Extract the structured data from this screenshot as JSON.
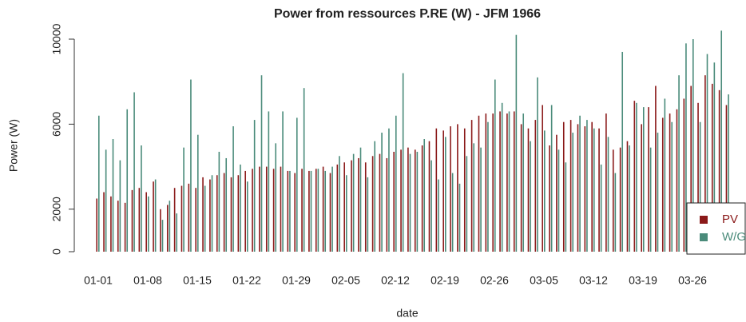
{
  "chart_data": {
    "type": "bar",
    "title": "Power from ressources P.RE (W) - JFM 1966",
    "x_label": "date",
    "y_label": "Power (W)",
    "categories": [
      "01-01",
      null,
      null,
      null,
      null,
      null,
      null,
      "01-08",
      null,
      null,
      null,
      null,
      null,
      null,
      "01-15",
      null,
      null,
      null,
      null,
      null,
      null,
      "01-22",
      null,
      null,
      null,
      null,
      null,
      null,
      "01-29",
      null,
      null,
      null,
      null,
      null,
      null,
      "02-05",
      null,
      null,
      null,
      null,
      null,
      null,
      "02-12",
      null,
      null,
      null,
      null,
      null,
      null,
      "02-19",
      null,
      null,
      null,
      null,
      null,
      null,
      "02-26",
      null,
      null,
      null,
      null,
      null,
      null,
      "03-05",
      null,
      null,
      null,
      null,
      null,
      null,
      "03-12",
      null,
      null,
      null,
      null,
      null,
      null,
      "03-19",
      null,
      null,
      null,
      null,
      null,
      null,
      "03-26",
      null,
      null,
      null,
      null,
      null
    ],
    "series": [
      {
        "name": "PV",
        "color": "#8b1a1a",
        "values": [
          2500,
          2800,
          2600,
          2400,
          2300,
          2900,
          3000,
          2800,
          3300,
          2000,
          2200,
          3000,
          3100,
          3200,
          3000,
          3500,
          3400,
          3600,
          3700,
          3500,
          3600,
          3800,
          3900,
          4000,
          4000,
          3900,
          4000,
          3800,
          3700,
          3900,
          3800,
          3900,
          4000,
          3700,
          4100,
          4200,
          4300,
          4400,
          4200,
          4500,
          4600,
          4400,
          4700,
          4800,
          4900,
          4800,
          5000,
          5200,
          5800,
          5700,
          5900,
          6000,
          5800,
          6200,
          6400,
          6500,
          6500,
          6600,
          6500,
          6600,
          6000,
          5800,
          6200,
          6900,
          5000,
          5500,
          6100,
          6200,
          6000,
          5900,
          6100,
          5800,
          6500,
          4800,
          4900,
          5200,
          7100,
          6000,
          6800,
          7800,
          6300,
          6500,
          6700,
          7200,
          7800,
          7000,
          8300,
          7900,
          7600,
          6900
        ]
      },
      {
        "name": "W/G",
        "color": "#4a8b7a",
        "values": [
          6400,
          4800,
          5300,
          4300,
          6700,
          7500,
          5000,
          2600,
          3400,
          1500,
          2400,
          1800,
          4900,
          8100,
          5500,
          3100,
          3600,
          4700,
          4400,
          5900,
          4100,
          3300,
          6200,
          8300,
          6600,
          5100,
          6600,
          3800,
          6300,
          7700,
          3800,
          3900,
          3800,
          4000,
          4500,
          3600,
          4600,
          4900,
          3500,
          5200,
          5600,
          5800,
          6400,
          8400,
          4600,
          4700,
          5300,
          4300,
          3400,
          5400,
          3700,
          3200,
          4500,
          5100,
          4900,
          6100,
          8100,
          7000,
          6600,
          10200,
          6500,
          5200,
          8200,
          5700,
          6900,
          4800,
          4200,
          5600,
          6400,
          6200,
          5800,
          4100,
          5400,
          3700,
          9400,
          5000,
          7000,
          6800,
          4900,
          5600,
          7200,
          6100,
          8300,
          9800,
          10000,
          6100,
          9300,
          8900,
          10400,
          7400
        ]
      }
    ],
    "ylim": [
      0,
      10000
    ],
    "yticks": [
      0,
      2000,
      6000,
      10000
    ],
    "legend": "bottom-right"
  }
}
